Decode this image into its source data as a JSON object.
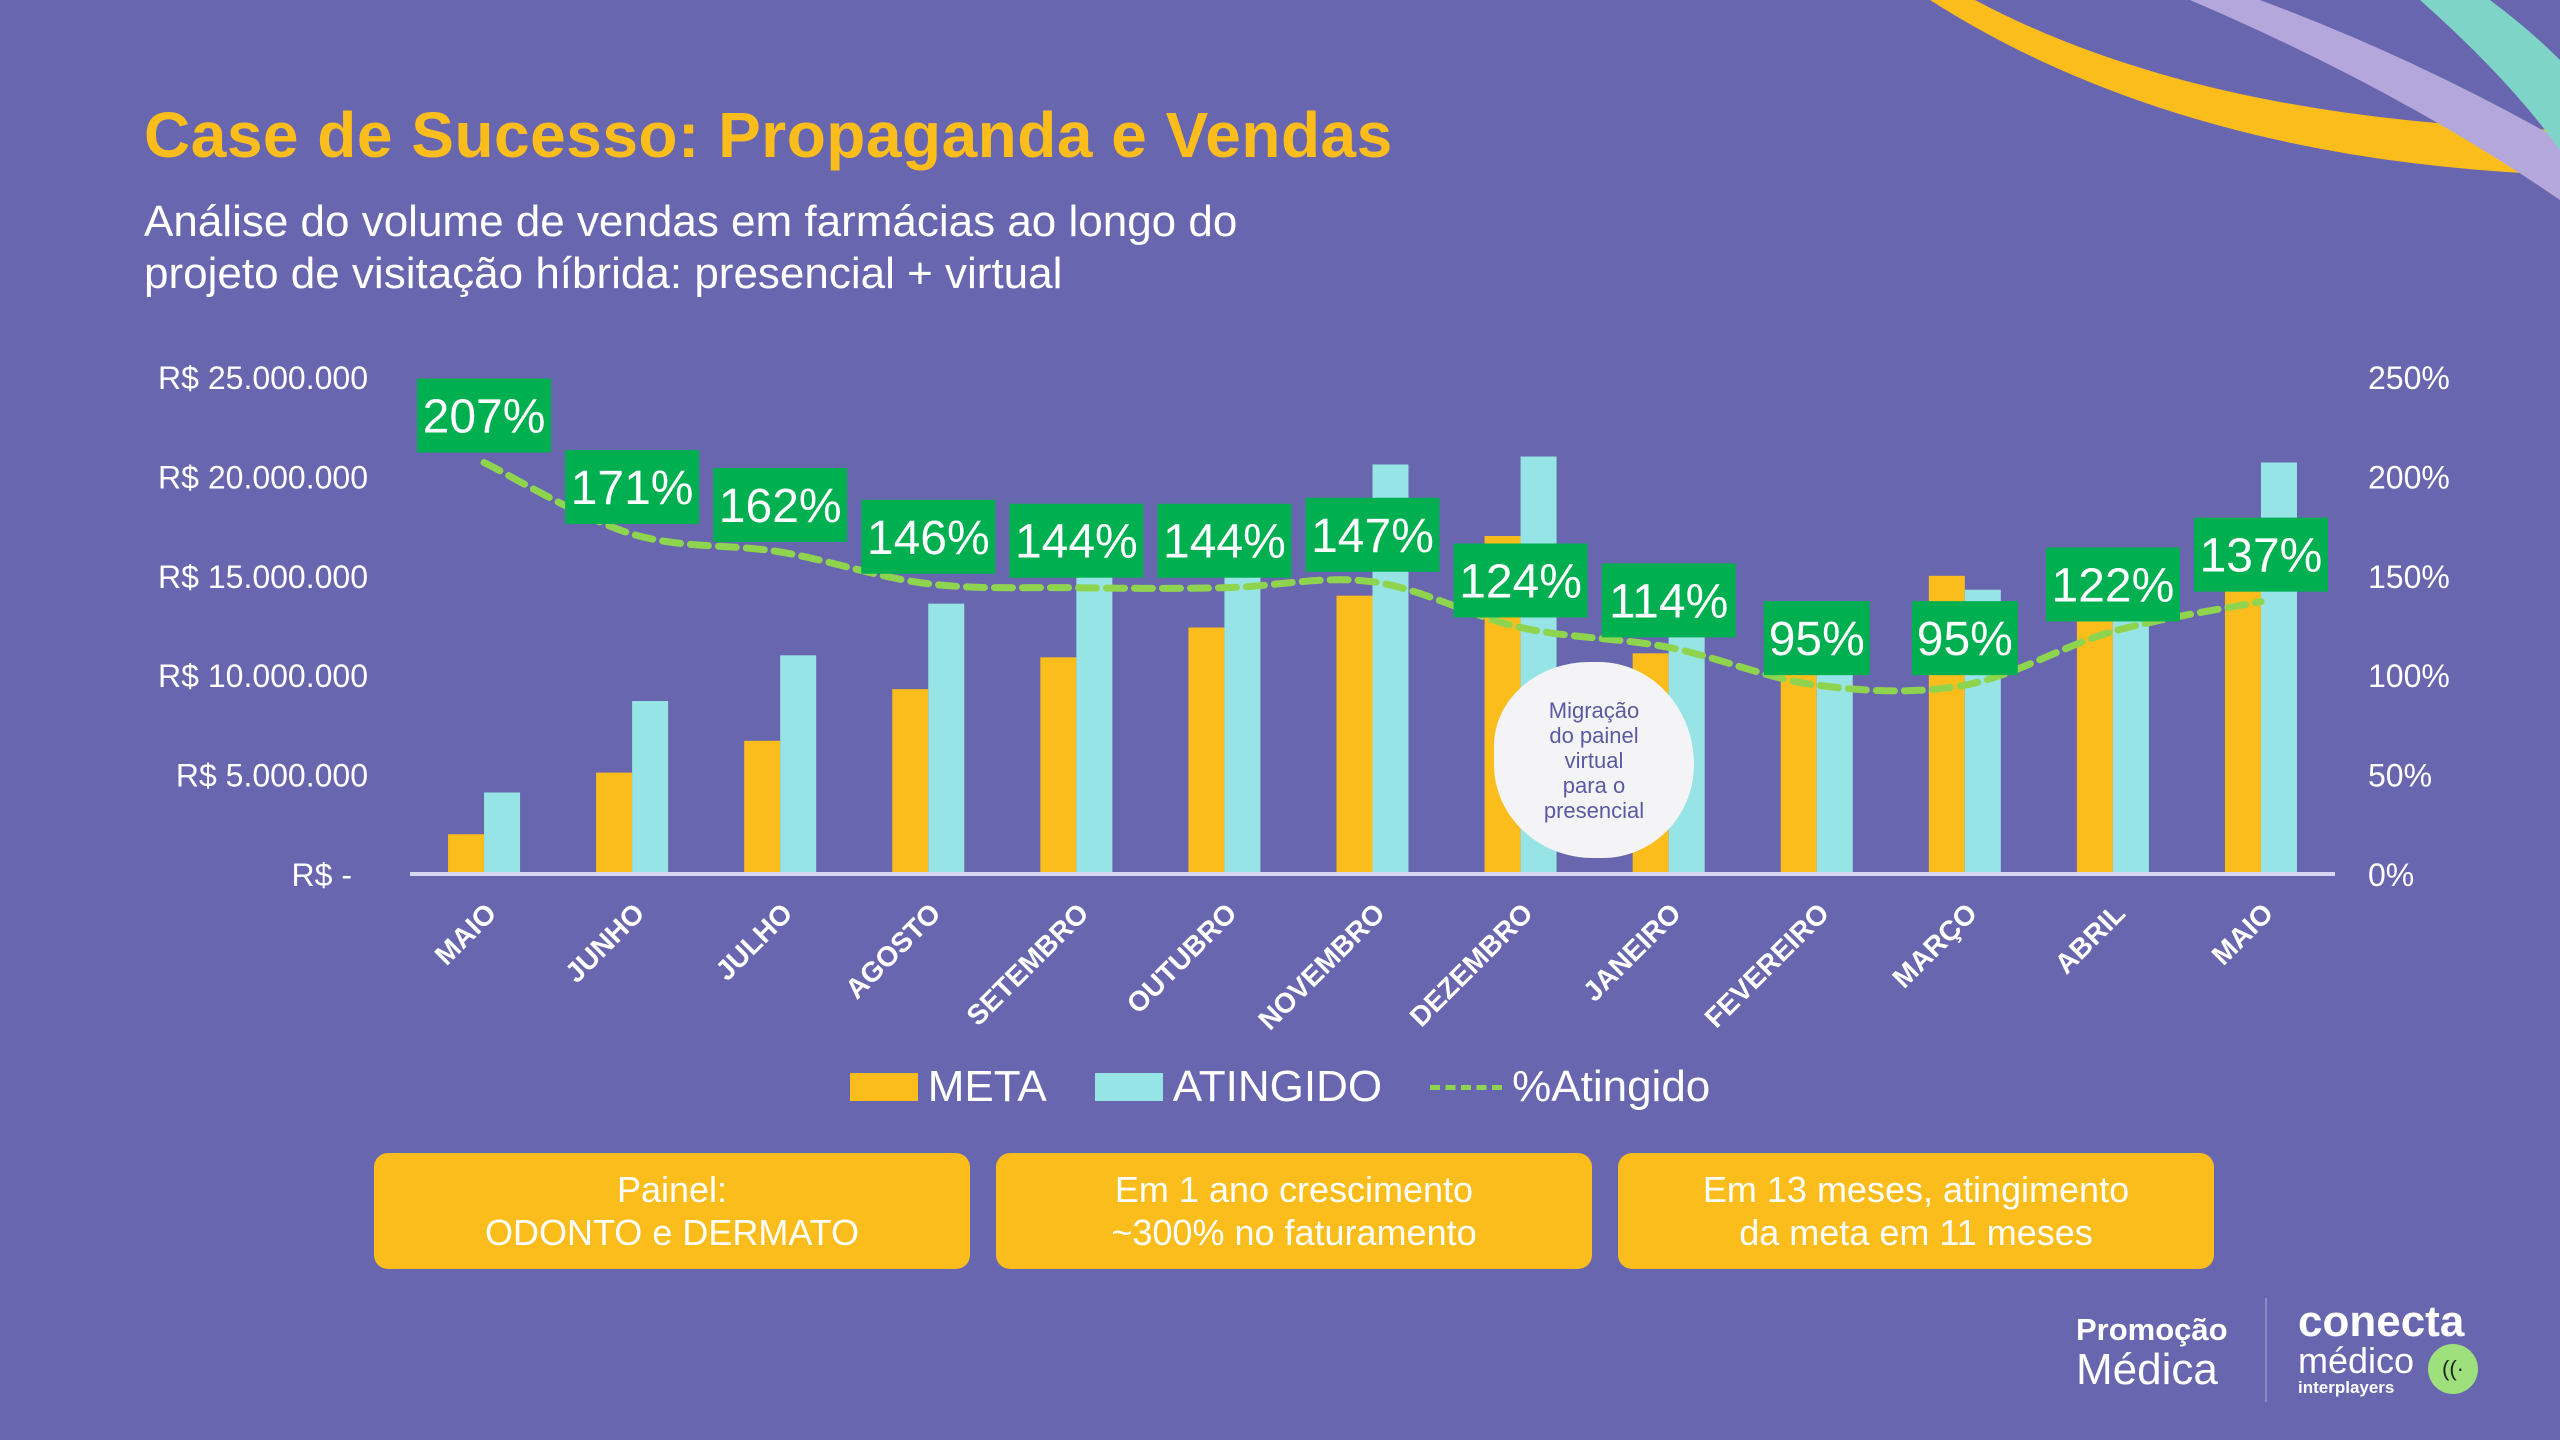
{
  "title": "Case de Sucesso: Propaganda e Vendas",
  "subtitle_line1": "Análise do volume de vendas em farmácias ao longo do",
  "subtitle_line2": "projeto de visitação híbrida: presencial + virtual",
  "colors": {
    "background": "#6866ae",
    "meta": "#fbbd1c",
    "atingido": "#96e4e6",
    "line": "#8fd44f",
    "label_bg": "#00b050",
    "title": "#fbbd1c"
  },
  "chart_data": {
    "type": "bar",
    "title": "",
    "categories": [
      "MAIO",
      "JUNHO",
      "JULHO",
      "AGOSTO",
      "SETEMBRO",
      "OUTUBRO",
      "NOVEMBRO",
      "DEZEMBRO",
      "JANEIRO",
      "FEVEREIRO",
      "MARÇO",
      "ABRIL",
      "MAIO"
    ],
    "series": [
      {
        "name": "META",
        "type": "bar",
        "axis": "left",
        "values": [
          2.0,
          5.1,
          6.7,
          9.3,
          10.9,
          12.4,
          14.0,
          17.0,
          11.1,
          12.0,
          15.0,
          13.0,
          15.1
        ]
      },
      {
        "name": "ATINGIDO",
        "type": "bar",
        "axis": "left",
        "values": [
          4.1,
          8.7,
          11.0,
          13.6,
          15.7,
          17.9,
          20.6,
          21.0,
          12.7,
          11.4,
          14.3,
          15.9,
          20.7
        ]
      },
      {
        "name": "%Atingido",
        "type": "line",
        "style": "dashed",
        "axis": "right",
        "values": [
          207,
          171,
          162,
          146,
          144,
          144,
          147,
          124,
          114,
          95,
          95,
          122,
          137
        ]
      }
    ],
    "value_unit": "R$ milhões",
    "data_labels": [
      "207%",
      "171%",
      "162%",
      "146%",
      "144%",
      "144%",
      "147%",
      "124%",
      "114%",
      "95%",
      "95%",
      "122%",
      "137%"
    ],
    "y_left": {
      "range": [
        0,
        25
      ],
      "ticks": [
        "R$ -",
        "R$ 5.000.000",
        "R$ 10.000.000",
        "R$ 15.000.000",
        "R$ 20.000.000",
        "R$ 25.000.000"
      ]
    },
    "y_right": {
      "range": [
        0,
        250
      ],
      "ticks": [
        "0%",
        "50%",
        "100%",
        "150%",
        "200%",
        "250%"
      ]
    },
    "grid": false,
    "legend": {
      "position": "bottom",
      "items": [
        "META",
        "ATINGIDO",
        "%Atingido"
      ]
    }
  },
  "annotation": {
    "line1": "Migração",
    "line2": "do painel",
    "line3": "virtual",
    "line4": "para o",
    "line5": "presencial"
  },
  "cards": [
    {
      "line1": "Painel:",
      "line2": "ODONTO e DERMATO"
    },
    {
      "line1": "Em 1 ano crescimento",
      "line2": "~300% no faturamento"
    },
    {
      "line1": "Em 13 meses, atingimento",
      "line2": "da meta em 11 meses"
    }
  ],
  "logos": {
    "promo_a": "Promoção",
    "promo_b": "Médica",
    "conecta_a": "conecta",
    "conecta_b": "médico",
    "conecta_c": "interplayers"
  }
}
